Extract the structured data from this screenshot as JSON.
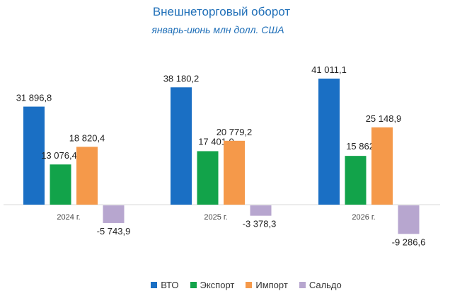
{
  "chart_data": {
    "type": "bar",
    "title": "Внешнеторговый оборот",
    "subtitle": "январь-июнь млн долл. США",
    "categories": [
      "2024 г.",
      "2025 г.",
      "2026 г."
    ],
    "series": [
      {
        "name": "ВТО",
        "color": "#1a6fc4",
        "values": [
          31896.8,
          38180.2,
          41011.1
        ],
        "labels": [
          "31 896,8",
          "38 180,2",
          "41 011,1"
        ]
      },
      {
        "name": "Экспорт",
        "color": "#12a34a",
        "values": [
          13076.4,
          17401.0,
          15862.3
        ],
        "labels": [
          "13 076,4",
          "17 401,0",
          "15 862,3"
        ]
      },
      {
        "name": "Импорт",
        "color": "#f5994a",
        "values": [
          18820.4,
          20779.2,
          25148.9
        ],
        "labels": [
          "18 820,4",
          "20 779,2",
          "25 148,9"
        ]
      },
      {
        "name": "Сальдо",
        "color": "#b7a6cf",
        "values": [
          -5743.9,
          -3378.3,
          -9286.6
        ],
        "labels": [
          "-5 743,9",
          "-3 378,3",
          "-9 286,6"
        ]
      }
    ],
    "legend_position": "bottom",
    "grid": false
  }
}
